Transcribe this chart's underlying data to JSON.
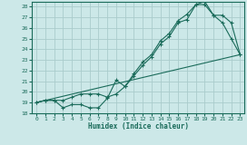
{
  "xlabel": "Humidex (Indice chaleur)",
  "bg_color": "#cce8e8",
  "grid_color": "#aacccc",
  "line_color": "#1a6b5a",
  "xlim": [
    -0.5,
    23.5
  ],
  "ylim": [
    18,
    28.5
  ],
  "xticks": [
    0,
    1,
    2,
    3,
    4,
    5,
    6,
    7,
    8,
    9,
    10,
    11,
    12,
    13,
    14,
    15,
    16,
    17,
    18,
    19,
    20,
    21,
    22,
    23
  ],
  "yticks": [
    18,
    19,
    20,
    21,
    22,
    23,
    24,
    25,
    26,
    27,
    28
  ],
  "line1_x": [
    0,
    1,
    2,
    3,
    4,
    5,
    6,
    7,
    8,
    9,
    10,
    11,
    12,
    13,
    14,
    15,
    16,
    17,
    18,
    19,
    20,
    21,
    22,
    23
  ],
  "line1_y": [
    19.0,
    19.2,
    19.2,
    18.5,
    18.8,
    18.8,
    18.5,
    18.5,
    19.4,
    21.1,
    20.5,
    21.7,
    22.8,
    23.5,
    24.8,
    25.5,
    26.7,
    27.3,
    28.2,
    28.2,
    27.2,
    26.5,
    25.0,
    23.5
  ],
  "line2_x": [
    0,
    1,
    2,
    3,
    4,
    5,
    6,
    7,
    8,
    9,
    10,
    11,
    12,
    13,
    14,
    15,
    16,
    17,
    18,
    19,
    20,
    21,
    22,
    23
  ],
  "line2_y": [
    19.0,
    19.2,
    19.2,
    19.2,
    19.5,
    19.8,
    19.8,
    19.8,
    19.5,
    19.8,
    20.5,
    21.5,
    22.5,
    23.3,
    24.5,
    25.2,
    26.5,
    26.8,
    28.2,
    28.5,
    27.2,
    27.2,
    26.5,
    23.5
  ],
  "line3_x": [
    0,
    23
  ],
  "line3_y": [
    19.0,
    23.5
  ]
}
